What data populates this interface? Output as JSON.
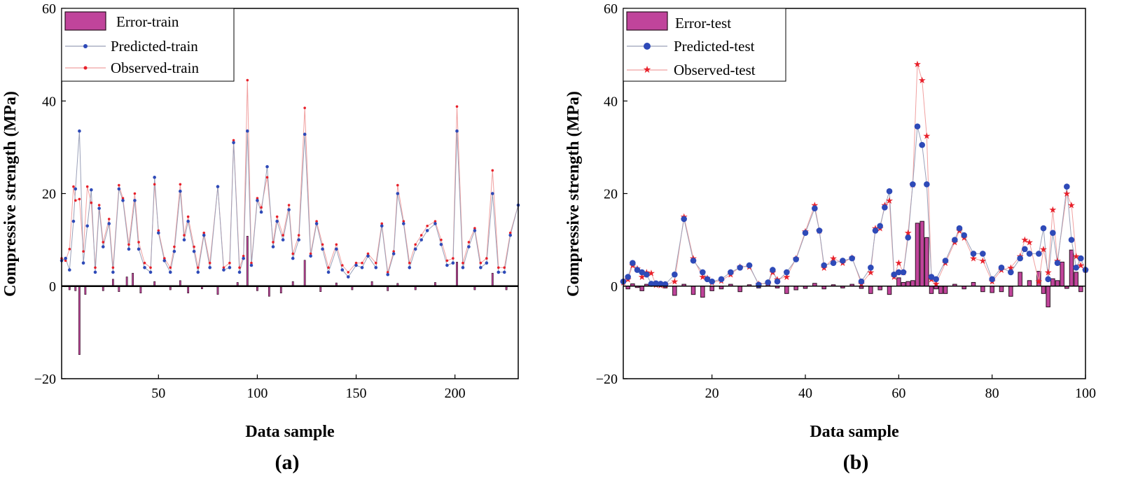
{
  "colors": {
    "error_bar": "#c0449b",
    "error_bar_edge": "#2a1020",
    "predicted": "#2e4ab8",
    "predicted_line": "#9aa0b8",
    "observed": "#e8202a",
    "observed_line": "#f0a0a0"
  },
  "chart_data": [
    {
      "type": "bar+line",
      "panel_label": "(a)",
      "xlabel": "Data sample",
      "ylabel": "Compressive strength (MPa)",
      "xlim": [
        1,
        232
      ],
      "ylim": [
        -20,
        60
      ],
      "xticks": [
        50,
        100,
        150,
        200
      ],
      "yticks": [
        -20,
        0,
        20,
        40,
        60
      ],
      "legend_position": "top-left",
      "series": [
        {
          "name": "Error-train",
          "kind": "bar",
          "x": [
            5,
            8,
            10,
            13,
            22,
            27,
            30,
            34,
            37,
            41,
            48,
            56,
            61,
            65,
            72,
            80,
            90,
            95,
            100,
            106,
            112,
            118,
            124,
            132,
            140,
            148,
            158,
            166,
            171,
            180,
            190,
            201,
            210,
            219,
            226
          ],
          "values": [
            -0.8,
            -1.0,
            -14.8,
            -1.8,
            -1.0,
            1.5,
            -1.2,
            2.0,
            2.8,
            -1.5,
            1.0,
            -0.8,
            1.2,
            -1.5,
            -0.6,
            -1.8,
            0.8,
            10.8,
            -1.0,
            -2.2,
            -1.5,
            1.0,
            5.6,
            -1.2,
            0.7,
            -0.8,
            1.0,
            -1.0,
            0.6,
            -0.8,
            0.8,
            5.2,
            -0.8,
            2.8,
            -0.8
          ]
        },
        {
          "name": "Predicted-train",
          "kind": "line-marker",
          "x": [
            1,
            3,
            5,
            7,
            8,
            10,
            12,
            14,
            16,
            18,
            20,
            22,
            25,
            27,
            30,
            32,
            35,
            38,
            40,
            43,
            46,
            48,
            50,
            53,
            56,
            58,
            61,
            63,
            65,
            68,
            70,
            73,
            76,
            80,
            83,
            86,
            88,
            91,
            93,
            95,
            97,
            100,
            102,
            105,
            108,
            110,
            113,
            116,
            118,
            121,
            124,
            127,
            130,
            133,
            136,
            140,
            143,
            146,
            150,
            153,
            156,
            160,
            163,
            166,
            169,
            171,
            174,
            177,
            180,
            183,
            186,
            190,
            193,
            196,
            199,
            201,
            204,
            207,
            210,
            213,
            216,
            219,
            222,
            225,
            228,
            232
          ],
          "values": [
            5.5,
            6.0,
            3.5,
            14.0,
            21.0,
            33.5,
            5.0,
            13.0,
            20.8,
            3.0,
            16.8,
            8.5,
            13.5,
            3.0,
            21.0,
            18.5,
            8.0,
            18.5,
            8.0,
            4.0,
            3.0,
            23.5,
            11.5,
            5.5,
            3.0,
            7.5,
            20.5,
            10.0,
            14.0,
            7.5,
            3.0,
            11.0,
            4.0,
            21.5,
            3.5,
            4.0,
            31.0,
            3.0,
            6.0,
            33.5,
            4.5,
            18.5,
            16.0,
            25.8,
            8.5,
            14.0,
            10.0,
            16.5,
            6.0,
            10.0,
            32.8,
            6.5,
            13.5,
            8.0,
            3.0,
            8.0,
            3.5,
            2.0,
            4.5,
            4.0,
            6.5,
            4.0,
            13.0,
            2.5,
            7.0,
            20.0,
            13.5,
            4.0,
            8.0,
            10.0,
            12.0,
            13.5,
            9.0,
            4.5,
            5.0,
            33.5,
            4.0,
            8.5,
            12.0,
            4.0,
            5.0,
            20.0,
            3.0,
            3.0,
            11.0,
            17.5
          ]
        },
        {
          "name": "Observed-train",
          "kind": "line-marker",
          "x": [
            1,
            3,
            5,
            7,
            8,
            10,
            12,
            14,
            16,
            18,
            20,
            22,
            25,
            27,
            30,
            32,
            35,
            38,
            40,
            43,
            46,
            48,
            50,
            53,
            56,
            58,
            61,
            63,
            65,
            68,
            70,
            73,
            76,
            80,
            83,
            86,
            88,
            91,
            93,
            95,
            97,
            100,
            102,
            105,
            108,
            110,
            113,
            116,
            118,
            121,
            124,
            127,
            130,
            133,
            136,
            140,
            143,
            146,
            150,
            153,
            156,
            160,
            163,
            166,
            169,
            171,
            174,
            177,
            180,
            183,
            186,
            190,
            193,
            196,
            199,
            201,
            204,
            207,
            210,
            213,
            216,
            219,
            222,
            225,
            228,
            232
          ],
          "values": [
            6.0,
            5.5,
            8.0,
            21.5,
            18.5,
            18.8,
            7.5,
            21.5,
            18.0,
            4.0,
            17.5,
            9.5,
            14.5,
            4.0,
            21.8,
            19.0,
            9.0,
            20.0,
            9.5,
            5.0,
            4.0,
            22.0,
            12.0,
            6.0,
            4.0,
            8.5,
            22.0,
            11.0,
            15.0,
            8.5,
            4.0,
            11.5,
            5.0,
            21.5,
            4.0,
            5.0,
            31.5,
            4.0,
            6.5,
            44.5,
            5.0,
            19.0,
            17.0,
            23.5,
            9.5,
            15.0,
            11.0,
            17.5,
            7.0,
            11.0,
            38.5,
            7.0,
            14.0,
            9.0,
            4.0,
            9.0,
            4.5,
            3.0,
            5.0,
            5.0,
            7.0,
            5.0,
            13.5,
            3.0,
            7.5,
            21.8,
            14.0,
            5.0,
            9.0,
            11.0,
            13.0,
            14.0,
            10.0,
            5.5,
            6.0,
            38.8,
            5.0,
            9.5,
            12.5,
            5.0,
            6.0,
            25.0,
            4.0,
            4.0,
            11.5,
            17.5
          ]
        }
      ]
    },
    {
      "type": "bar+line",
      "panel_label": "(b)",
      "xlabel": "Data sample",
      "ylabel": "Compressive strength (MPa)",
      "xlim": [
        1,
        100
      ],
      "ylim": [
        -20,
        60
      ],
      "xticks": [
        20,
        40,
        60,
        80,
        100
      ],
      "yticks": [
        -20,
        0,
        20,
        40,
        60
      ],
      "legend_position": "top-left",
      "series": [
        {
          "name": "Error-test",
          "kind": "bar",
          "x": [
            2,
            3,
            4,
            5,
            6,
            8,
            10,
            12,
            14,
            16,
            18,
            20,
            22,
            24,
            26,
            28,
            30,
            32,
            34,
            36,
            38,
            40,
            42,
            44,
            46,
            48,
            50,
            52,
            54,
            56,
            58,
            60,
            61,
            62,
            63,
            64,
            65,
            66,
            67,
            68,
            69,
            70,
            72,
            74,
            76,
            78,
            80,
            82,
            84,
            86,
            88,
            90,
            91,
            92,
            93,
            94,
            95,
            96,
            97,
            98,
            99
          ],
          "values": [
            -0.6,
            0.5,
            -0.3,
            -1.0,
            0.4,
            0.3,
            -0.4,
            -2.0,
            0.4,
            -1.8,
            -2.4,
            -1.0,
            -0.6,
            0.4,
            -1.2,
            0.3,
            -0.4,
            0.5,
            -0.4,
            -1.6,
            -0.8,
            -0.5,
            0.6,
            -0.6,
            0.3,
            -0.4,
            0.4,
            -0.5,
            -1.6,
            -0.8,
            -1.8,
            1.8,
            0.8,
            1.0,
            1.2,
            13.6,
            14.0,
            10.5,
            -1.6,
            -0.6,
            -1.6,
            -1.6,
            0.4,
            -0.6,
            0.8,
            -1.2,
            -1.4,
            -1.2,
            -2.2,
            3.0,
            1.2,
            3.2,
            -1.6,
            -4.5,
            1.6,
            1.2,
            5.2,
            -0.5,
            7.8,
            3.0,
            -1.2
          ]
        },
        {
          "name": "Predicted-test",
          "kind": "line-marker",
          "x": [
            1,
            2,
            3,
            4,
            5,
            6,
            7,
            8,
            9,
            10,
            12,
            14,
            16,
            18,
            19,
            20,
            22,
            24,
            26,
            28,
            30,
            32,
            33,
            34,
            36,
            38,
            40,
            42,
            43,
            44,
            46,
            48,
            50,
            52,
            54,
            55,
            56,
            57,
            58,
            59,
            60,
            61,
            62,
            63,
            64,
            65,
            66,
            67,
            68,
            70,
            72,
            73,
            74,
            76,
            78,
            80,
            82,
            84,
            86,
            87,
            88,
            90,
            91,
            92,
            93,
            94,
            96,
            97,
            98,
            99,
            100
          ],
          "values": [
            1.0,
            2.0,
            5.0,
            3.5,
            3.0,
            2.5,
            0.5,
            0.6,
            0.5,
            0.4,
            2.5,
            14.5,
            5.5,
            3.0,
            1.5,
            1.0,
            1.5,
            3.0,
            4.0,
            4.5,
            0.3,
            0.8,
            3.5,
            1.0,
            3.0,
            5.8,
            11.5,
            16.8,
            12.0,
            4.5,
            5.0,
            5.5,
            6.0,
            1.0,
            4.0,
            12.0,
            13.0,
            17.0,
            20.5,
            2.5,
            3.0,
            3.0,
            10.5,
            22.0,
            34.5,
            30.5,
            22.0,
            2.0,
            1.5,
            5.5,
            10.0,
            12.5,
            11.0,
            7.0,
            7.0,
            1.5,
            4.0,
            3.0,
            6.0,
            8.0,
            7.0,
            7.0,
            12.5,
            1.5,
            11.5,
            5.0,
            21.5,
            10.0,
            4.0,
            6.0,
            3.5
          ]
        },
        {
          "name": "Observed-test",
          "kind": "line-marker",
          "x": [
            1,
            2,
            3,
            4,
            5,
            6,
            7,
            8,
            9,
            10,
            12,
            14,
            16,
            18,
            19,
            20,
            22,
            24,
            26,
            28,
            30,
            32,
            33,
            34,
            36,
            38,
            40,
            42,
            43,
            44,
            46,
            48,
            50,
            52,
            54,
            55,
            56,
            57,
            58,
            59,
            60,
            61,
            62,
            63,
            64,
            65,
            66,
            67,
            68,
            70,
            72,
            73,
            74,
            76,
            78,
            80,
            82,
            84,
            86,
            87,
            88,
            90,
            91,
            92,
            93,
            94,
            96,
            97,
            98,
            99,
            100
          ],
          "values": [
            0.8,
            1.5,
            4.5,
            3.8,
            2.0,
            3.0,
            2.8,
            0.3,
            0.2,
            0.2,
            1.0,
            15.0,
            6.0,
            2.0,
            1.8,
            0.8,
            1.2,
            2.5,
            4.2,
            4.2,
            0.5,
            0.5,
            3.0,
            1.5,
            2.0,
            6.0,
            11.8,
            17.5,
            12.0,
            4.0,
            6.0,
            5.0,
            6.2,
            0.5,
            3.0,
            12.5,
            12.5,
            17.5,
            18.5,
            2.0,
            5.0,
            3.0,
            11.5,
            22.0,
            48.0,
            44.5,
            32.5,
            1.5,
            0.5,
            5.0,
            9.5,
            12.0,
            10.5,
            6.0,
            5.5,
            1.0,
            3.5,
            4.0,
            6.5,
            10.0,
            9.5,
            1.0,
            8.0,
            3.0,
            16.5,
            5.5,
            20.0,
            17.5,
            6.5,
            4.5,
            3.5
          ]
        }
      ]
    }
  ]
}
